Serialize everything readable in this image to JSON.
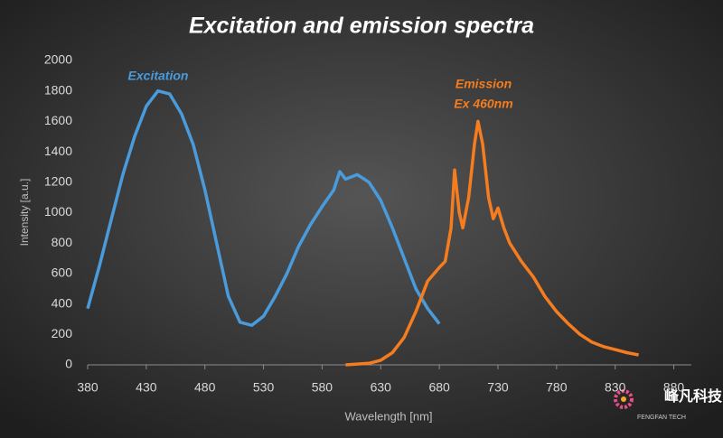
{
  "chart_data": {
    "type": "line",
    "title": "Excitation and emission spectra",
    "x_label": "Wavelength [nm]",
    "y_label": "Intensity [a.u.]",
    "annotations": [
      "Excitation",
      "Emission",
      "Ex 460nm"
    ],
    "logo": {
      "name": "峰凡科技",
      "subtitle": "FENGFAN TECH"
    },
    "xlim": [
      380,
      895
    ],
    "xticks": [
      380,
      430,
      480,
      530,
      580,
      630,
      680,
      730,
      780,
      830,
      880
    ],
    "ylim": [
      0,
      2000
    ],
    "yticks": [
      0,
      200,
      400,
      600,
      800,
      1000,
      1200,
      1400,
      1600,
      1800,
      2000
    ],
    "grid": false,
    "series": [
      {
        "name": "Excitation",
        "color": "#4a9bdc",
        "x": [
          380,
          390,
          400,
          410,
          420,
          430,
          440,
          450,
          460,
          470,
          480,
          490,
          500,
          510,
          520,
          530,
          540,
          550,
          560,
          570,
          580,
          590,
          595,
          600,
          610,
          620,
          630,
          640,
          650,
          660,
          670,
          680
        ],
        "values": [
          370,
          650,
          950,
          1250,
          1500,
          1700,
          1800,
          1780,
          1650,
          1450,
          1150,
          800,
          450,
          280,
          260,
          320,
          450,
          600,
          780,
          920,
          1040,
          1150,
          1270,
          1220,
          1250,
          1200,
          1080,
          900,
          700,
          500,
          370,
          270
        ]
      },
      {
        "name": "Emission",
        "color": "#f57c1f",
        "x": [
          600,
          620,
          630,
          640,
          650,
          660,
          670,
          680,
          685,
          690,
          693,
          697,
          700,
          705,
          710,
          713,
          717,
          722,
          726,
          730,
          735,
          740,
          750,
          760,
          770,
          780,
          790,
          800,
          810,
          820,
          830,
          840,
          850
        ],
        "values": [
          0,
          10,
          30,
          80,
          180,
          350,
          550,
          640,
          680,
          900,
          1280,
          1000,
          900,
          1100,
          1450,
          1600,
          1450,
          1100,
          960,
          1030,
          900,
          800,
          680,
          580,
          450,
          350,
          270,
          200,
          150,
          120,
          100,
          80,
          65
        ]
      }
    ]
  }
}
